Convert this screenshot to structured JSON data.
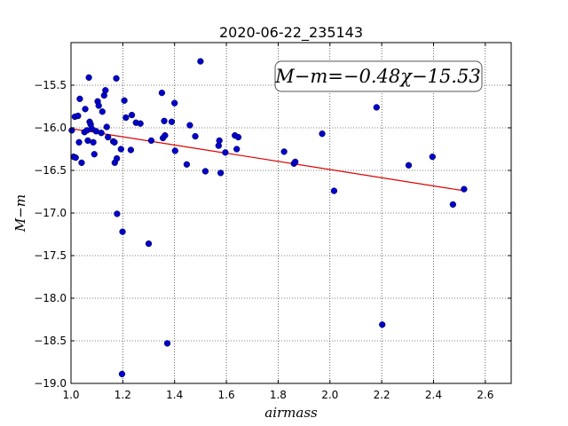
{
  "chart_data": {
    "type": "scatter",
    "title": "2020-06-22_235143",
    "xlabel": "airmass",
    "ylabel": "M−m",
    "xlim": [
      1.0,
      2.7
    ],
    "ylim": [
      -19.0,
      -15.0
    ],
    "y_inverted": true,
    "grid": true,
    "xticks": [
      1.0,
      1.2,
      1.4,
      1.6,
      1.8,
      2.0,
      2.2,
      2.4,
      2.6
    ],
    "xtick_labels": [
      "1.0",
      "1.2",
      "1.4",
      "1.6",
      "1.8",
      "2.0",
      "2.2",
      "2.4",
      "2.6"
    ],
    "yticks": [
      -15.5,
      -16.0,
      -16.5,
      -17.0,
      -17.5,
      -18.0,
      -18.5,
      -19.0
    ],
    "ytick_labels": [
      "−15.5",
      "−16.0",
      "−16.5",
      "−17.0",
      "−17.5",
      "−18.0",
      "−18.5",
      "−19.0"
    ],
    "annotation": "M−m=−0.48χ−15.53",
    "point_color": "#0000cc",
    "fit_color": "#dd0000",
    "fit": {
      "slope": -0.48,
      "intercept": -15.53,
      "x_range": [
        1.0,
        2.52
      ]
    },
    "points": [
      {
        "x": 1.003,
        "y": -16.03
      },
      {
        "x": 1.01,
        "y": -16.34
      },
      {
        "x": 1.015,
        "y": -15.87
      },
      {
        "x": 1.018,
        "y": -16.35
      },
      {
        "x": 1.027,
        "y": -15.86
      },
      {
        "x": 1.031,
        "y": -16.17
      },
      {
        "x": 1.034,
        "y": -15.66
      },
      {
        "x": 1.041,
        "y": -16.41
      },
      {
        "x": 1.052,
        "y": -16.05
      },
      {
        "x": 1.055,
        "y": -15.78
      },
      {
        "x": 1.062,
        "y": -16.03
      },
      {
        "x": 1.065,
        "y": -16.15
      },
      {
        "x": 1.069,
        "y": -15.41
      },
      {
        "x": 1.072,
        "y": -15.93
      },
      {
        "x": 1.076,
        "y": -15.96
      },
      {
        "x": 1.08,
        "y": -16.01
      },
      {
        "x": 1.086,
        "y": -16.17
      },
      {
        "x": 1.09,
        "y": -16.31
      },
      {
        "x": 1.097,
        "y": -16.04
      },
      {
        "x": 1.103,
        "y": -15.69
      },
      {
        "x": 1.107,
        "y": -15.74
      },
      {
        "x": 1.117,
        "y": -16.06
      },
      {
        "x": 1.121,
        "y": -15.81
      },
      {
        "x": 1.128,
        "y": -15.62
      },
      {
        "x": 1.133,
        "y": -15.56
      },
      {
        "x": 1.138,
        "y": -15.99
      },
      {
        "x": 1.143,
        "y": -16.11
      },
      {
        "x": 1.163,
        "y": -16.16
      },
      {
        "x": 1.168,
        "y": -16.17
      },
      {
        "x": 1.169,
        "y": -16.41
      },
      {
        "x": 1.175,
        "y": -15.42
      },
      {
        "x": 1.177,
        "y": -16.36
      },
      {
        "x": 1.178,
        "y": -17.01
      },
      {
        "x": 1.193,
        "y": -16.25
      },
      {
        "x": 1.197,
        "y": -18.89
      },
      {
        "x": 1.199,
        "y": -17.22
      },
      {
        "x": 1.206,
        "y": -15.68
      },
      {
        "x": 1.212,
        "y": -15.88
      },
      {
        "x": 1.231,
        "y": -16.26
      },
      {
        "x": 1.235,
        "y": -15.85
      },
      {
        "x": 1.251,
        "y": -15.94
      },
      {
        "x": 1.268,
        "y": -15.95
      },
      {
        "x": 1.3,
        "y": -17.36
      },
      {
        "x": 1.31,
        "y": -16.15
      },
      {
        "x": 1.351,
        "y": -15.59
      },
      {
        "x": 1.355,
        "y": -16.12
      },
      {
        "x": 1.36,
        "y": -15.92
      },
      {
        "x": 1.363,
        "y": -16.09
      },
      {
        "x": 1.372,
        "y": -18.53
      },
      {
        "x": 1.389,
        "y": -15.93
      },
      {
        "x": 1.4,
        "y": -15.71
      },
      {
        "x": 1.402,
        "y": -16.27
      },
      {
        "x": 1.447,
        "y": -16.43
      },
      {
        "x": 1.459,
        "y": -15.97
      },
      {
        "x": 1.48,
        "y": -16.1
      },
      {
        "x": 1.5,
        "y": -15.22
      },
      {
        "x": 1.519,
        "y": -16.51
      },
      {
        "x": 1.57,
        "y": -16.21
      },
      {
        "x": 1.573,
        "y": -16.15
      },
      {
        "x": 1.578,
        "y": -16.53
      },
      {
        "x": 1.596,
        "y": -16.29
      },
      {
        "x": 1.633,
        "y": -16.09
      },
      {
        "x": 1.64,
        "y": -16.25
      },
      {
        "x": 1.646,
        "y": -16.11
      },
      {
        "x": 1.823,
        "y": -16.28
      },
      {
        "x": 1.861,
        "y": -16.42
      },
      {
        "x": 1.866,
        "y": -16.4
      },
      {
        "x": 1.97,
        "y": -16.07
      },
      {
        "x": 2.016,
        "y": -16.74
      },
      {
        "x": 2.18,
        "y": -15.76
      },
      {
        "x": 2.202,
        "y": -18.31
      },
      {
        "x": 2.304,
        "y": -16.44
      },
      {
        "x": 2.396,
        "y": -16.34
      },
      {
        "x": 2.475,
        "y": -16.9
      },
      {
        "x": 2.518,
        "y": -16.72
      }
    ]
  }
}
